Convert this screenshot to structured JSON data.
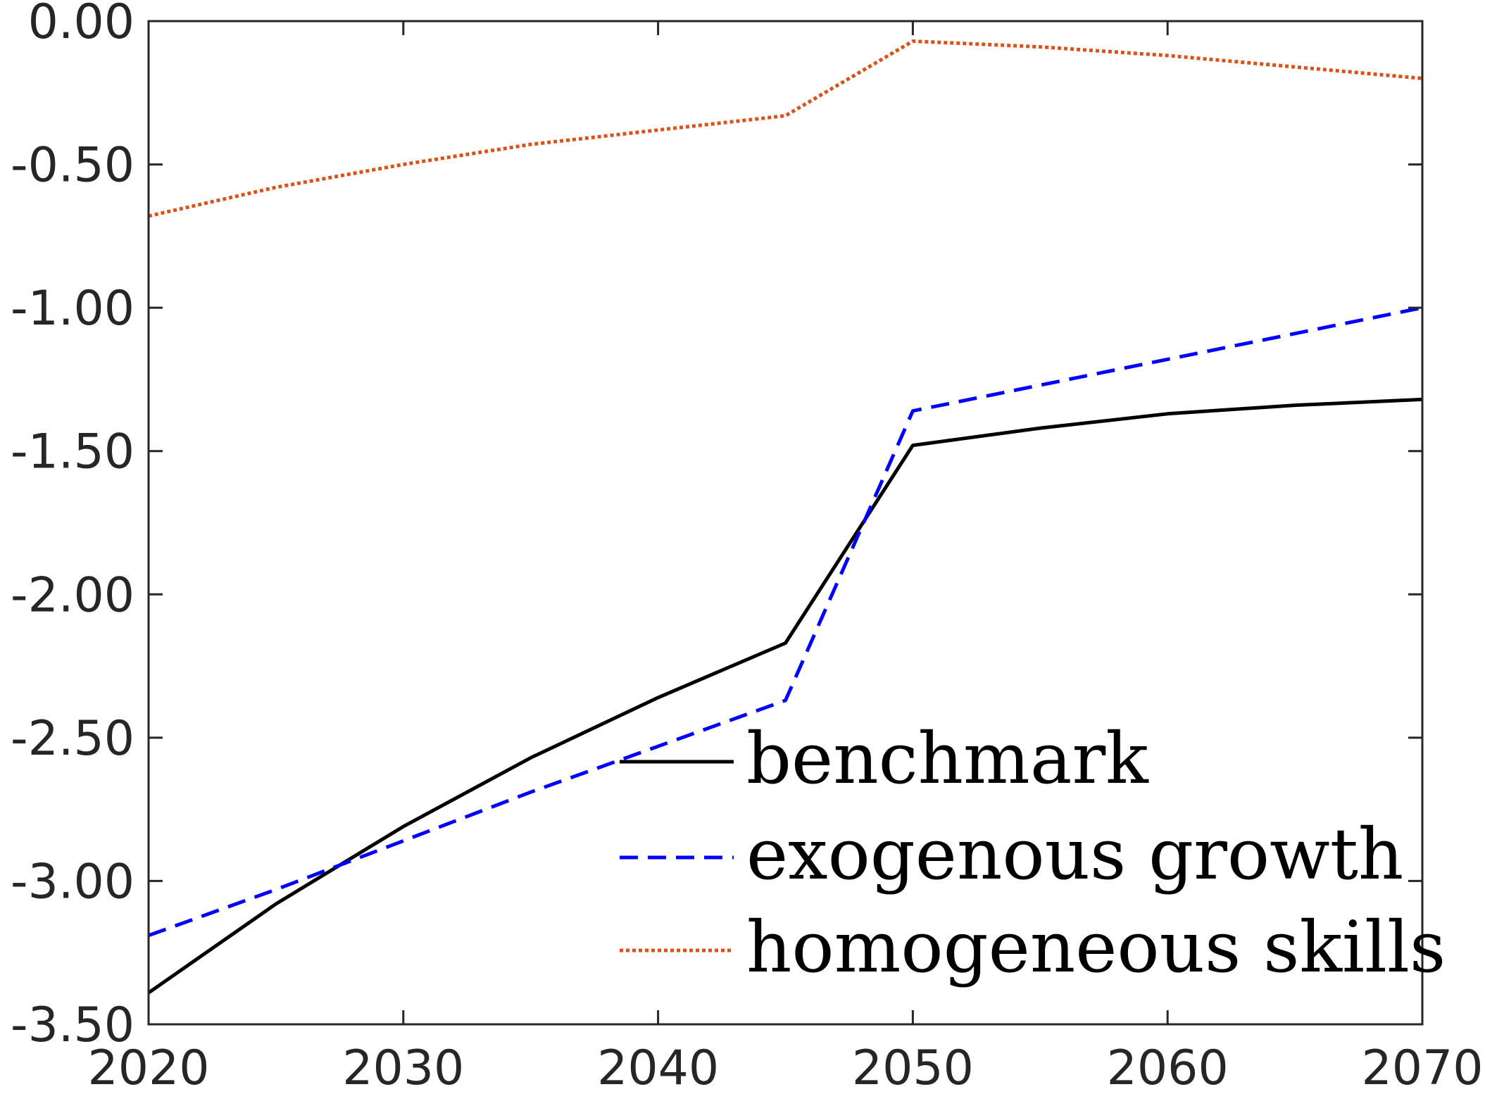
{
  "chart_data": {
    "type": "line",
    "title": "",
    "xlabel": "",
    "ylabel": "",
    "xlim": [
      2020,
      2070
    ],
    "ylim": [
      -3.5,
      0.0
    ],
    "x_ticks": [
      2020,
      2030,
      2040,
      2050,
      2060,
      2070
    ],
    "x_tick_labels": [
      "2020",
      "2030",
      "2040",
      "2050",
      "2060",
      "2070"
    ],
    "y_ticks": [
      0.0,
      -0.5,
      -1.0,
      -1.5,
      -2.0,
      -2.5,
      -3.0,
      -3.5
    ],
    "y_tick_labels": [
      "0.00",
      "-0.50",
      "-1.00",
      "-1.50",
      "-2.00",
      "-2.50",
      "-3.00",
      "-3.50"
    ],
    "grid": false,
    "legend_position": "bottom-right",
    "x": [
      2020,
      2025,
      2030,
      2035,
      2040,
      2045,
      2050,
      2055,
      2060,
      2065,
      2070
    ],
    "series": [
      {
        "name": "benchmark",
        "color": "#000000",
        "line_style": "solid",
        "values": [
          -3.39,
          -3.08,
          -2.81,
          -2.57,
          -2.36,
          -2.17,
          -1.48,
          -1.42,
          -1.37,
          -1.34,
          -1.32
        ]
      },
      {
        "name": "exogenous growth",
        "color": "#0000ff",
        "line_style": "dashed",
        "values": [
          -3.19,
          -3.03,
          -2.86,
          -2.69,
          -2.53,
          -2.37,
          -1.36,
          -1.27,
          -1.18,
          -1.09,
          -1.0
        ]
      },
      {
        "name": "homogeneous skills",
        "color": "#d95319",
        "line_style": "dotted",
        "values": [
          -0.68,
          -0.58,
          -0.5,
          -0.43,
          -0.38,
          -0.33,
          -0.07,
          -0.09,
          -0.12,
          -0.16,
          -0.2
        ]
      }
    ]
  }
}
